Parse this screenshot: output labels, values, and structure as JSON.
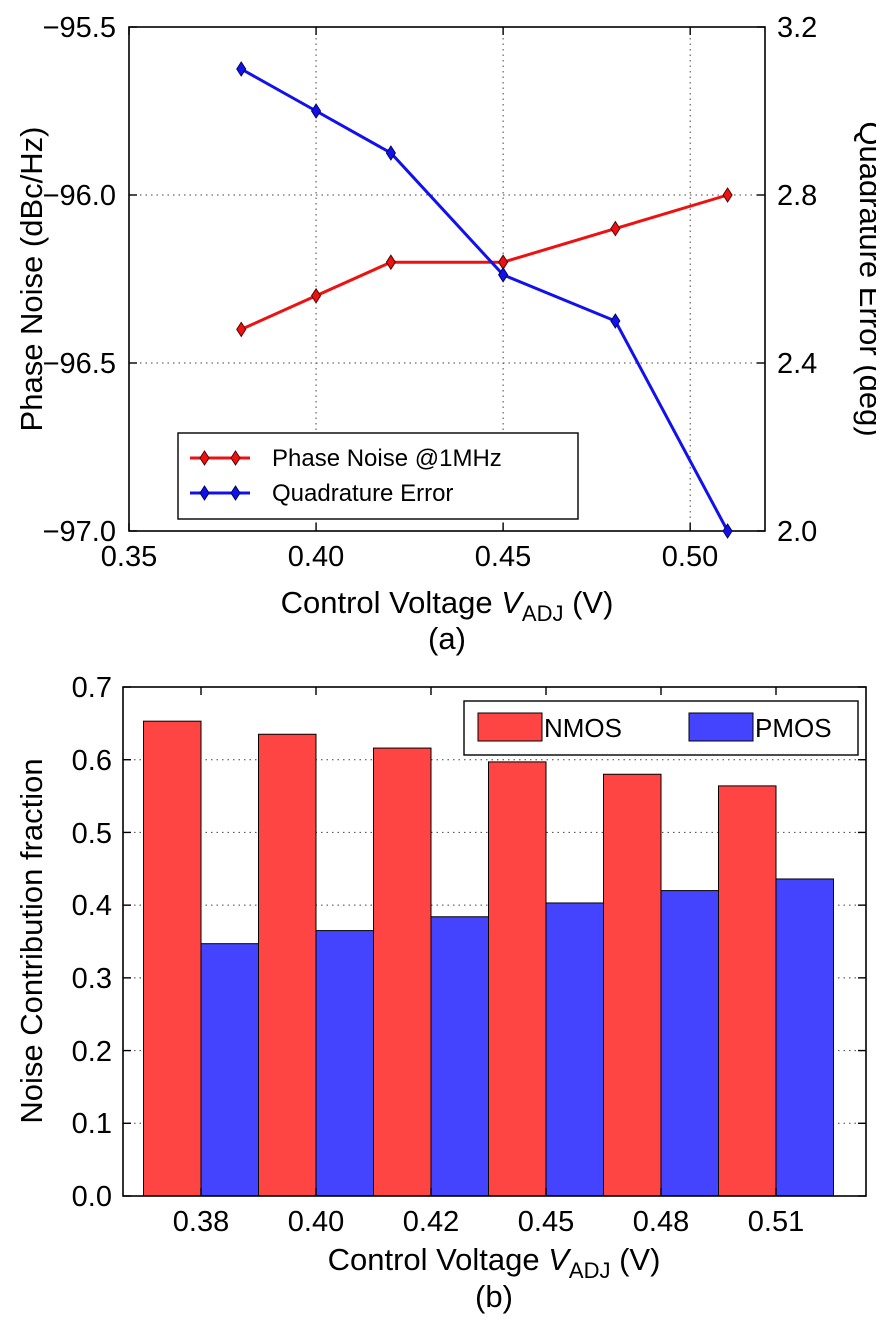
{
  "chart_data": [
    {
      "type": "line",
      "caption": "(a)",
      "xlabel_prefix": "Control Voltage ",
      "xlabel_var": "V",
      "xlabel_sub": "ADJ",
      "xlabel_suffix": " (V)",
      "ylabel_left": "Phase Noise (dBc/Hz)",
      "ylabel_right": "Quadrature Error (deg)",
      "xlim": [
        0.35,
        0.52
      ],
      "ylim_left": [
        -97.0,
        -95.5
      ],
      "ylim_right": [
        2.0,
        3.2
      ],
      "x_ticks": [
        "0.35",
        "0.40",
        "0.45",
        "0.50"
      ],
      "y_left_ticks": [
        "−95.5",
        "−96.0",
        "−96.5",
        "−97.0"
      ],
      "y_right_ticks": [
        "3.2",
        "2.8",
        "2.4",
        "2.0"
      ],
      "grid": true,
      "legend_position": "lower-left",
      "x": [
        0.38,
        0.4,
        0.42,
        0.45,
        0.48,
        0.51
      ],
      "series": [
        {
          "name": "Phase Noise @1MHz",
          "axis": "left",
          "color": "#ee1111",
          "marker": "diamond",
          "values": [
            -96.4,
            -96.3,
            -96.2,
            -96.2,
            -96.1,
            -96.0
          ]
        },
        {
          "name": "Quadrature Error",
          "axis": "right",
          "color": "#1111ee",
          "marker": "diamond",
          "values": [
            3.1,
            3.0,
            2.9,
            2.61,
            2.5,
            2.0
          ]
        }
      ]
    },
    {
      "type": "bar",
      "caption": "(b)",
      "xlabel_prefix": "Control Voltage ",
      "xlabel_var": "V",
      "xlabel_sub": "ADJ",
      "xlabel_suffix": " (V)",
      "ylabel": "Noise Contribution fraction",
      "categories": [
        "0.38",
        "0.40",
        "0.42",
        "0.45",
        "0.48",
        "0.51"
      ],
      "ylim": [
        0.0,
        0.7
      ],
      "y_ticks": [
        "0.0",
        "0.1",
        "0.2",
        "0.3",
        "0.4",
        "0.5",
        "0.6",
        "0.7"
      ],
      "grid": true,
      "legend_position": "top-right",
      "series": [
        {
          "name": "NMOS",
          "color": "#ff4444",
          "values": [
            0.653,
            0.635,
            0.616,
            0.597,
            0.58,
            0.564
          ]
        },
        {
          "name": "PMOS",
          "color": "#4444ff",
          "values": [
            0.347,
            0.365,
            0.384,
            0.403,
            0.42,
            0.436
          ]
        }
      ]
    }
  ]
}
